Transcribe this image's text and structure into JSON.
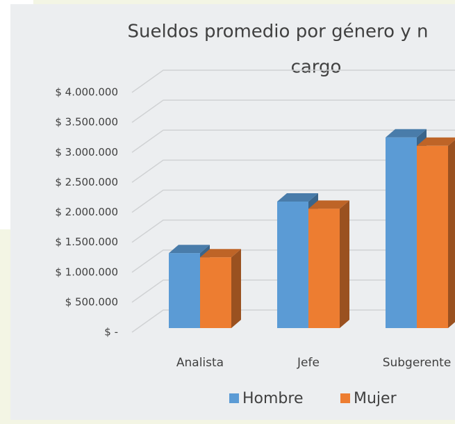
{
  "chart_data": {
    "type": "bar3d",
    "title": [
      "Sueldos promedio por género y n",
      "cargo"
    ],
    "categories": [
      "Analista",
      "Jefe",
      "Subgerente"
    ],
    "series": [
      {
        "name": "Hombre",
        "color": "#5b9bd5",
        "values": [
          1250000,
          2110000,
          3180000
        ]
      },
      {
        "name": "Mujer",
        "color": "#ed7d31",
        "values": [
          1180000,
          1990000,
          3040000
        ]
      }
    ],
    "ylim": [
      0,
      4000000
    ],
    "yticks": [
      {
        "value": 0,
        "label": "$ -"
      },
      {
        "value": 500000,
        "label": "$ 500.000"
      },
      {
        "value": 1000000,
        "label": "$ 1.000.000"
      },
      {
        "value": 1500000,
        "label": "$ 1.500.000"
      },
      {
        "value": 2000000,
        "label": "$ 2.000.000"
      },
      {
        "value": 2500000,
        "label": "$ 2.500.000"
      },
      {
        "value": 3000000,
        "label": "$ 3.000.000"
      },
      {
        "value": 3500000,
        "label": "$ 3.500.000"
      },
      {
        "value": 4000000,
        "label": "$ 4.000.000"
      }
    ],
    "grid": true,
    "legend": "bottom"
  }
}
